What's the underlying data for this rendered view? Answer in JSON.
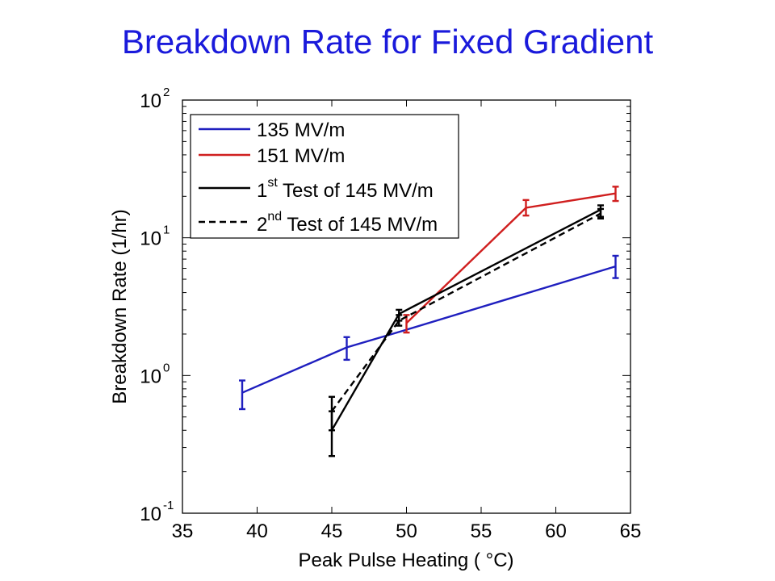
{
  "title": "Breakdown Rate for Fixed Gradient",
  "chart_data": {
    "type": "line",
    "xlabel": "Peak Pulse Heating ( °C)",
    "ylabel": "Breakdown Rate (1/hr)",
    "xlim": [
      35,
      65
    ],
    "ylim": [
      0.1,
      100
    ],
    "yscale": "log",
    "xticks": [
      "35",
      "40",
      "45",
      "50",
      "55",
      "60",
      "65"
    ],
    "yticks": [
      {
        "base": "10",
        "exp": "2",
        "value": 100
      },
      {
        "base": "10",
        "exp": "1",
        "value": 10
      },
      {
        "base": "10",
        "exp": "0",
        "value": 1
      },
      {
        "base": "10",
        "exp": "-1",
        "value": 0.1
      }
    ],
    "grid": false,
    "legend_position": "top-left",
    "series": [
      {
        "name": "135 MV/m",
        "color": "#1f1fbf",
        "dash": false,
        "error_bars": true,
        "x": [
          39,
          46,
          50,
          64
        ],
        "y": [
          0.75,
          1.6,
          2.15,
          6.2
        ],
        "err_low": [
          0.57,
          1.3,
          2.15,
          5.1
        ],
        "err_high": [
          0.92,
          1.9,
          2.15,
          7.4
        ]
      },
      {
        "name": "151 MV/m",
        "color": "#d01f1f",
        "dash": false,
        "error_bars": true,
        "x": [
          50,
          58,
          64
        ],
        "y": [
          2.4,
          16.5,
          21
        ],
        "err_low": [
          2.05,
          14.5,
          18.5
        ],
        "err_high": [
          2.75,
          18.8,
          23.5
        ]
      },
      {
        "name_base": "1",
        "name_sup": "st",
        "name_rest": " Test of 145 MV/m",
        "color": "#000000",
        "dash": false,
        "error_bars": true,
        "x": [
          45,
          49.5,
          63
        ],
        "y": [
          0.4,
          2.8,
          16
        ],
        "err_low": [
          0.26,
          2.5,
          14.2
        ],
        "err_high": [
          0.55,
          3.0,
          17.2
        ]
      },
      {
        "name_base": "2",
        "name_sup": "nd",
        "name_rest": " Test of 145 MV/m",
        "color": "#000000",
        "dash": true,
        "error_bars": true,
        "x": [
          45,
          49.5,
          63
        ],
        "y": [
          0.55,
          2.5,
          15
        ],
        "err_low": [
          0.4,
          2.3,
          13.8
        ],
        "err_high": [
          0.7,
          2.75,
          16.2
        ]
      }
    ]
  }
}
